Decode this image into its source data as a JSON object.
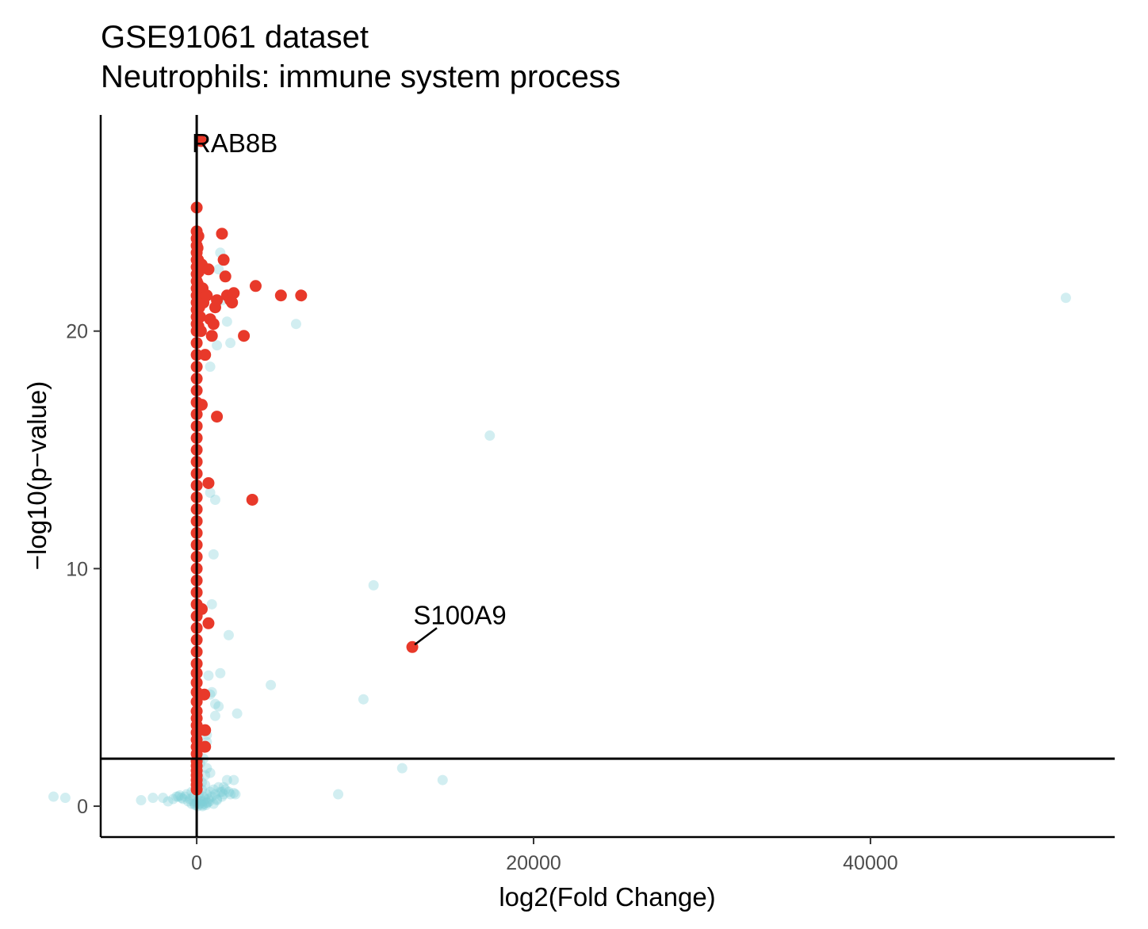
{
  "chart_data": {
    "type": "scatter",
    "title": "GSE91061 dataset",
    "subtitle": "Neutrophils: immune system process",
    "xlabel": "log2(Fold Change)",
    "ylabel": "−log10(p−value)",
    "xlim": [
      -5700,
      54500
    ],
    "ylim": [
      -1.3,
      29.1
    ],
    "x_ticks": [
      0,
      20000,
      40000
    ],
    "y_ticks": [
      0,
      10,
      20
    ],
    "reference_lines": {
      "vertical_x": 0,
      "horizontal_y": 2
    },
    "grid": false,
    "legend": "none",
    "colors": {
      "significant": "#e8392a",
      "not_significant": "#7fcfd6"
    },
    "series": [
      {
        "group": "significant",
        "x": [
          0,
          0,
          0,
          0,
          0,
          0,
          0,
          0,
          0,
          0,
          0,
          0,
          0,
          0,
          0,
          0,
          0,
          0,
          0,
          0,
          0,
          0,
          0,
          0,
          0,
          0,
          0,
          0,
          0,
          0,
          0,
          0,
          0,
          0,
          0,
          0,
          0,
          0,
          0,
          0,
          0,
          0,
          0,
          0,
          0,
          0,
          0,
          0,
          0,
          0,
          0,
          0,
          0,
          0,
          0,
          0,
          0,
          0,
          0,
          0,
          0,
          0,
          100,
          50,
          80,
          120,
          60,
          40,
          150,
          200,
          100,
          300,
          350,
          400,
          250,
          500,
          600,
          700,
          800,
          900,
          1000,
          1100,
          1200,
          1500,
          1600,
          1700,
          1800,
          2000,
          2100,
          2200,
          2800,
          3500,
          5000,
          6200,
          3300,
          700,
          500,
          450,
          300,
          1200,
          700,
          300,
          12800,
          500,
          250
        ],
        "y": [
          0.7,
          0.9,
          1.1,
          1.3,
          1.5,
          1.7,
          1.9,
          2.2,
          2.5,
          2.8,
          3.1,
          3.4,
          3.7,
          4.0,
          4.4,
          4.8,
          5.2,
          5.6,
          6.0,
          6.5,
          7.0,
          7.5,
          8.0,
          8.5,
          9.0,
          9.5,
          10.0,
          10.5,
          11.0,
          11.5,
          12.0,
          12.5,
          13.0,
          13.5,
          14.0,
          14.5,
          15.0,
          15.5,
          16.0,
          16.5,
          17.0,
          17.5,
          18.0,
          18.5,
          19.0,
          19.5,
          20.0,
          20.3,
          20.6,
          20.9,
          21.2,
          21.5,
          21.8,
          22.1,
          22.4,
          22.7,
          23.0,
          23.3,
          23.6,
          23.9,
          24.2,
          25.2,
          24.0,
          23.5,
          23.0,
          22.5,
          22.0,
          21.5,
          21.0,
          20.6,
          20.2,
          22.8,
          21.8,
          21.2,
          20.0,
          19.0,
          21.5,
          22.6,
          20.5,
          19.8,
          20.3,
          21.0,
          21.3,
          24.1,
          23.0,
          22.3,
          21.5,
          21.3,
          21.2,
          21.6,
          19.8,
          21.9,
          21.5,
          21.5,
          12.9,
          7.7,
          3.2,
          4.7,
          16.9,
          16.4,
          13.6,
          8.3,
          6.7,
          2.5,
          28.0
        ]
      },
      {
        "group": "not_significant",
        "x": [
          -8500,
          -7800,
          -3300,
          -2600,
          -2000,
          -1700,
          -1400,
          -1200,
          -1100,
          -1000,
          -900,
          -800,
          -700,
          -600,
          -500,
          -400,
          -300,
          -200,
          -100,
          0,
          100,
          200,
          300,
          400,
          500,
          600,
          700,
          800,
          900,
          1000,
          1100,
          1200,
          1300,
          1400,
          1500,
          1600,
          1700,
          1800,
          1900,
          2000,
          2200,
          -300,
          -200,
          -100,
          0,
          100,
          200,
          300,
          400,
          500,
          600,
          100,
          300,
          500,
          0,
          200,
          400,
          600,
          800,
          50,
          150,
          250,
          350,
          450,
          550,
          650,
          750,
          1000,
          1200,
          1500,
          1600,
          2200,
          2300,
          1100,
          1100,
          1300,
          800,
          700,
          600,
          1400,
          900,
          2400,
          1900,
          1000,
          1100,
          800,
          4400,
          9900,
          12200,
          10500,
          14600,
          8400,
          17400,
          5900,
          51600,
          600,
          900,
          800,
          1200,
          1400,
          1500,
          1800,
          2000,
          1300
        ],
        "y": [
          0.4,
          0.35,
          0.25,
          0.35,
          0.35,
          0.2,
          0.3,
          0.4,
          0.4,
          0.45,
          0.35,
          0.3,
          0.4,
          0.5,
          0.2,
          0.3,
          0.6,
          0.4,
          0.1,
          0.8,
          0.5,
          0.3,
          0.7,
          0.4,
          0.9,
          0.5,
          0.3,
          0.6,
          0.4,
          0.7,
          0.5,
          0.3,
          0.8,
          0.6,
          0.4,
          0.5,
          0.7,
          1.1,
          0.6,
          0.5,
          0.55,
          0.1,
          0.2,
          0.05,
          0.15,
          0.25,
          0.1,
          0.05,
          0.2,
          0.3,
          0.15,
          1.2,
          1.0,
          1.3,
          1.5,
          1.8,
          2.0,
          1.6,
          1.4,
          0.0,
          0.1,
          0.2,
          0.0,
          0.1,
          0.05,
          0.15,
          0.2,
          0.1,
          0.25,
          0.6,
          0.8,
          1.1,
          0.5,
          3.8,
          4.3,
          4.2,
          4.7,
          5.5,
          3.0,
          5.6,
          4.8,
          3.9,
          7.2,
          10.6,
          12.9,
          13.2,
          5.1,
          4.5,
          1.6,
          9.3,
          1.1,
          0.5,
          15.6,
          20.3,
          21.4,
          2.7,
          8.5,
          18.5,
          19.4,
          23.3,
          21.3,
          20.4,
          19.5,
          22.6
        ]
      }
    ],
    "annotations": [
      {
        "text": "RAB8B",
        "x": 0,
        "y": 28.0
      },
      {
        "text": "S100A9",
        "x": 12800,
        "y": 6.7
      }
    ]
  }
}
